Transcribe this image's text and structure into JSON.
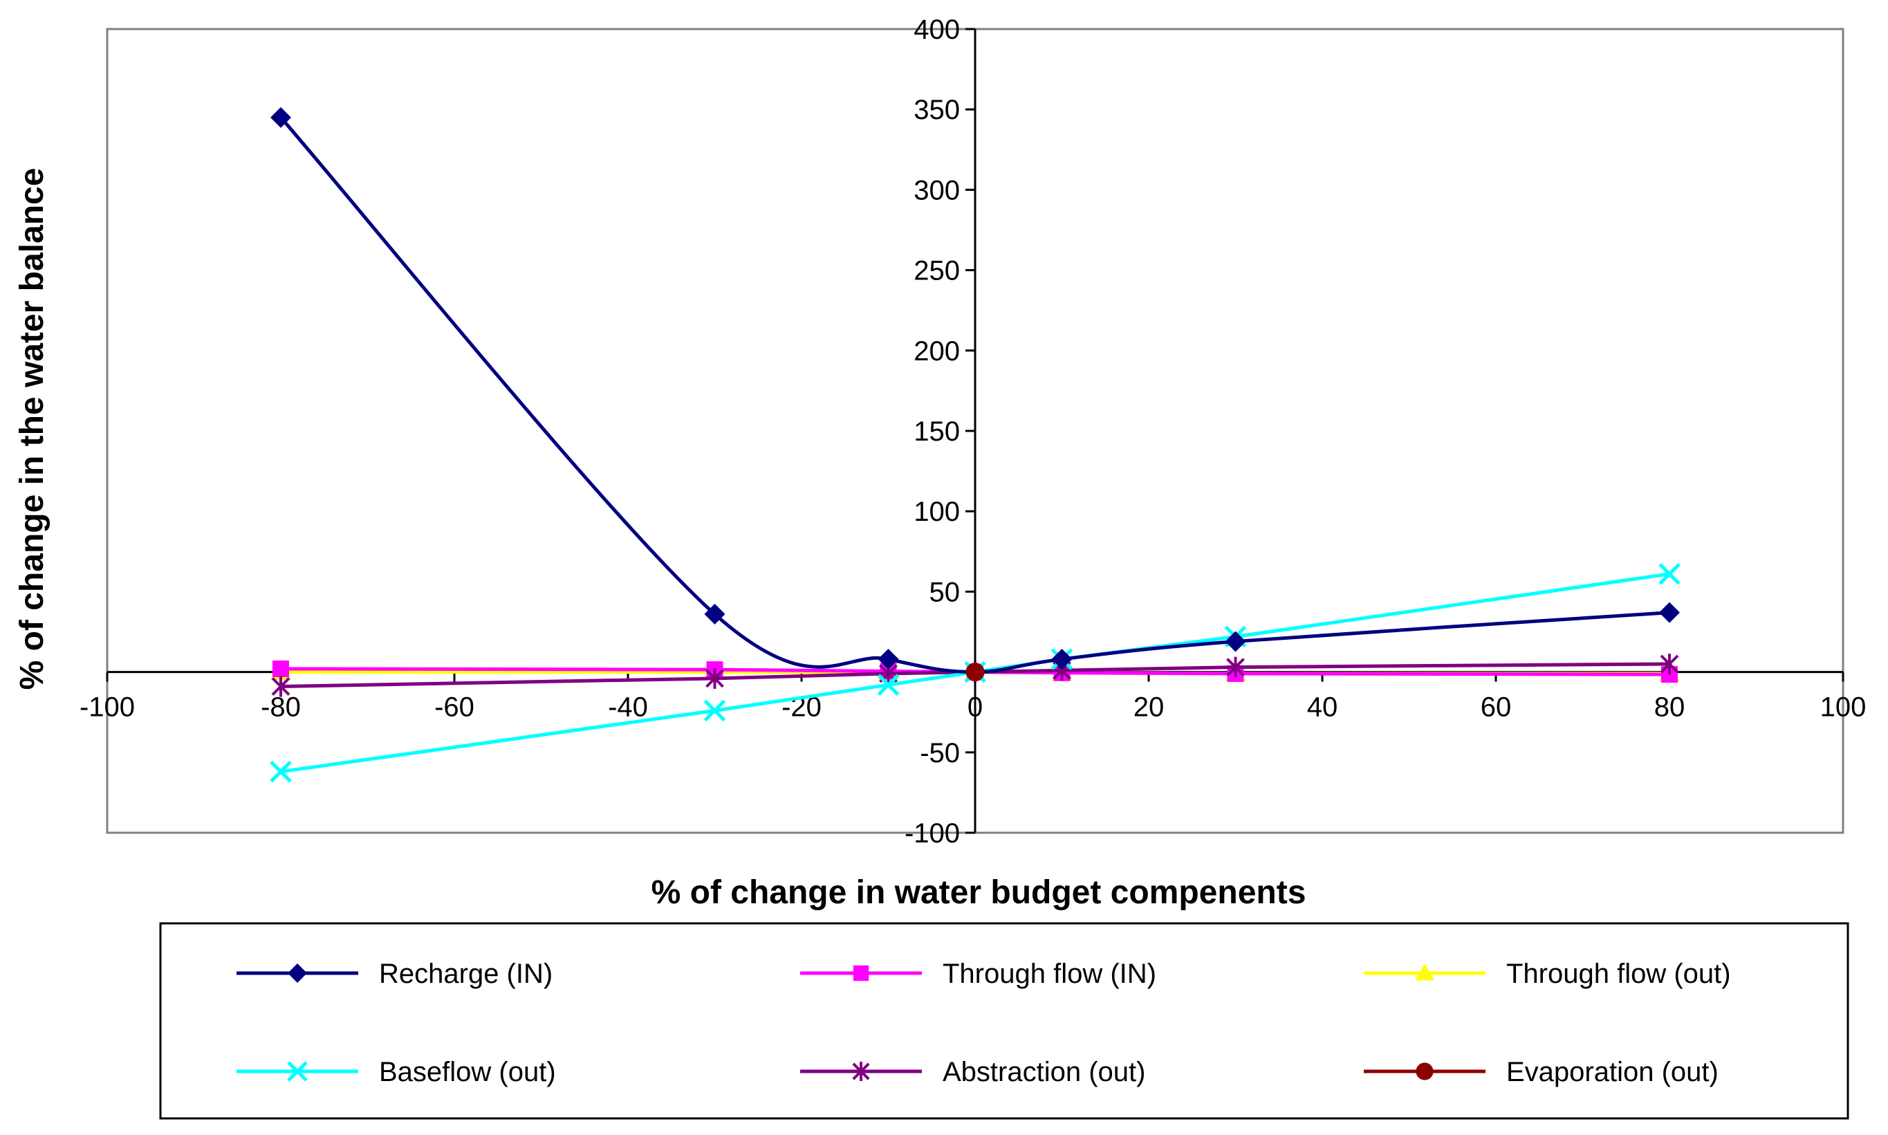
{
  "chart_data": {
    "type": "line",
    "title": "",
    "xlabel": "% of change in water budget compenents",
    "ylabel": "% of change in the water balance",
    "xlim": [
      -100,
      100
    ],
    "ylim": [
      -100,
      400
    ],
    "xticks": [
      -100,
      -80,
      -60,
      -40,
      -20,
      0,
      20,
      40,
      60,
      80,
      100
    ],
    "yticks": [
      -100,
      -50,
      50,
      100,
      150,
      200,
      250,
      300,
      350,
      400
    ],
    "x_tick_labels": [
      "-100",
      "-80",
      "-60",
      "-40",
      "-20",
      "0",
      "20",
      "40",
      "60",
      "80",
      "100"
    ],
    "y_tick_labels": [
      "-100",
      "-50",
      "50",
      "100",
      "150",
      "200",
      "250",
      "300",
      "350",
      "400"
    ],
    "grid": false,
    "legend_position": "bottom",
    "series": [
      {
        "name": "Recharge (IN)",
        "color": "#000080",
        "marker": "diamond",
        "smooth": true,
        "x": [
          -80,
          -30,
          -10,
          0,
          10,
          30,
          80
        ],
        "values": [
          345,
          36,
          8,
          0,
          8,
          19,
          37
        ]
      },
      {
        "name": "Through flow (IN)",
        "color": "#FF00FF",
        "marker": "square",
        "smooth": false,
        "x": [
          -80,
          -30,
          -10,
          0,
          10,
          30,
          80
        ],
        "values": [
          2,
          1.5,
          0.5,
          0,
          -0.5,
          -1,
          -1.5
        ]
      },
      {
        "name": "Through flow (out)",
        "color": "#FFFF00",
        "marker": "triangle",
        "smooth": false,
        "x": [
          -80,
          -30,
          -10,
          0,
          10,
          30,
          80
        ],
        "values": [
          0,
          0,
          0,
          0,
          -0.5,
          -1,
          -1
        ]
      },
      {
        "name": "Baseflow (out)",
        "color": "#00FFFF",
        "marker": "x",
        "smooth": false,
        "x": [
          -80,
          -30,
          -10,
          0,
          10,
          30,
          80
        ],
        "values": [
          -62,
          -24,
          -8,
          0,
          8,
          22,
          61
        ]
      },
      {
        "name": "Abstraction (out)",
        "color": "#800080",
        "marker": "asterisk",
        "smooth": false,
        "x": [
          -80,
          -30,
          -10,
          0,
          10,
          30,
          80
        ],
        "values": [
          -9,
          -4,
          -1,
          0,
          1,
          3,
          5
        ]
      },
      {
        "name": "Evaporation (out)",
        "color": "#8B0000",
        "marker": "circle",
        "smooth": false,
        "x": [
          0
        ],
        "values": [
          0
        ]
      }
    ]
  }
}
